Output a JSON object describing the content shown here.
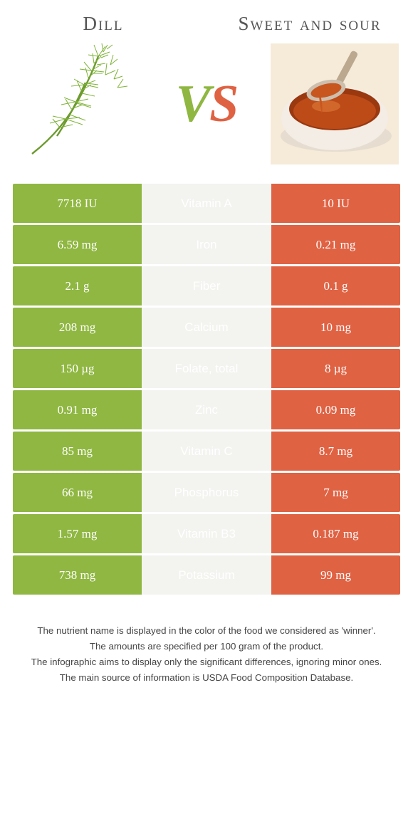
{
  "colors": {
    "green": "#8fb741",
    "orange": "#df6243",
    "mid_bg": "#f3f4f0"
  },
  "leftFood": {
    "title": "Dill"
  },
  "rightFood": {
    "title": "Sweet and sour"
  },
  "vs": {
    "v": "V",
    "s": "S"
  },
  "rows": [
    {
      "left": "7718 IU",
      "label": "Vitamin A",
      "right": "10 IU",
      "winner": "left"
    },
    {
      "left": "6.59 mg",
      "label": "Iron",
      "right": "0.21 mg",
      "winner": "left"
    },
    {
      "left": "2.1 g",
      "label": "Fiber",
      "right": "0.1 g",
      "winner": "left"
    },
    {
      "left": "208 mg",
      "label": "Calcium",
      "right": "10 mg",
      "winner": "left"
    },
    {
      "left": "150 µg",
      "label": "Folate, total",
      "right": "8 µg",
      "winner": "left"
    },
    {
      "left": "0.91 mg",
      "label": "Zinc",
      "right": "0.09 mg",
      "winner": "left"
    },
    {
      "left": "85 mg",
      "label": "Vitamin C",
      "right": "8.7 mg",
      "winner": "left"
    },
    {
      "left": "66 mg",
      "label": "Phosphorus",
      "right": "7 mg",
      "winner": "left"
    },
    {
      "left": "1.57 mg",
      "label": "Vitamin B3",
      "right": "0.187 mg",
      "winner": "left"
    },
    {
      "left": "738 mg",
      "label": "Potassium",
      "right": "99 mg",
      "winner": "left"
    }
  ],
  "footnotes": [
    "The nutrient name is displayed in the color of the food we considered as 'winner'.",
    "The amounts are specified per 100 gram of the product.",
    "The infographic aims to display only the significant differences, ignoring minor ones.",
    "The main source of information is USDA Food Composition Database."
  ]
}
